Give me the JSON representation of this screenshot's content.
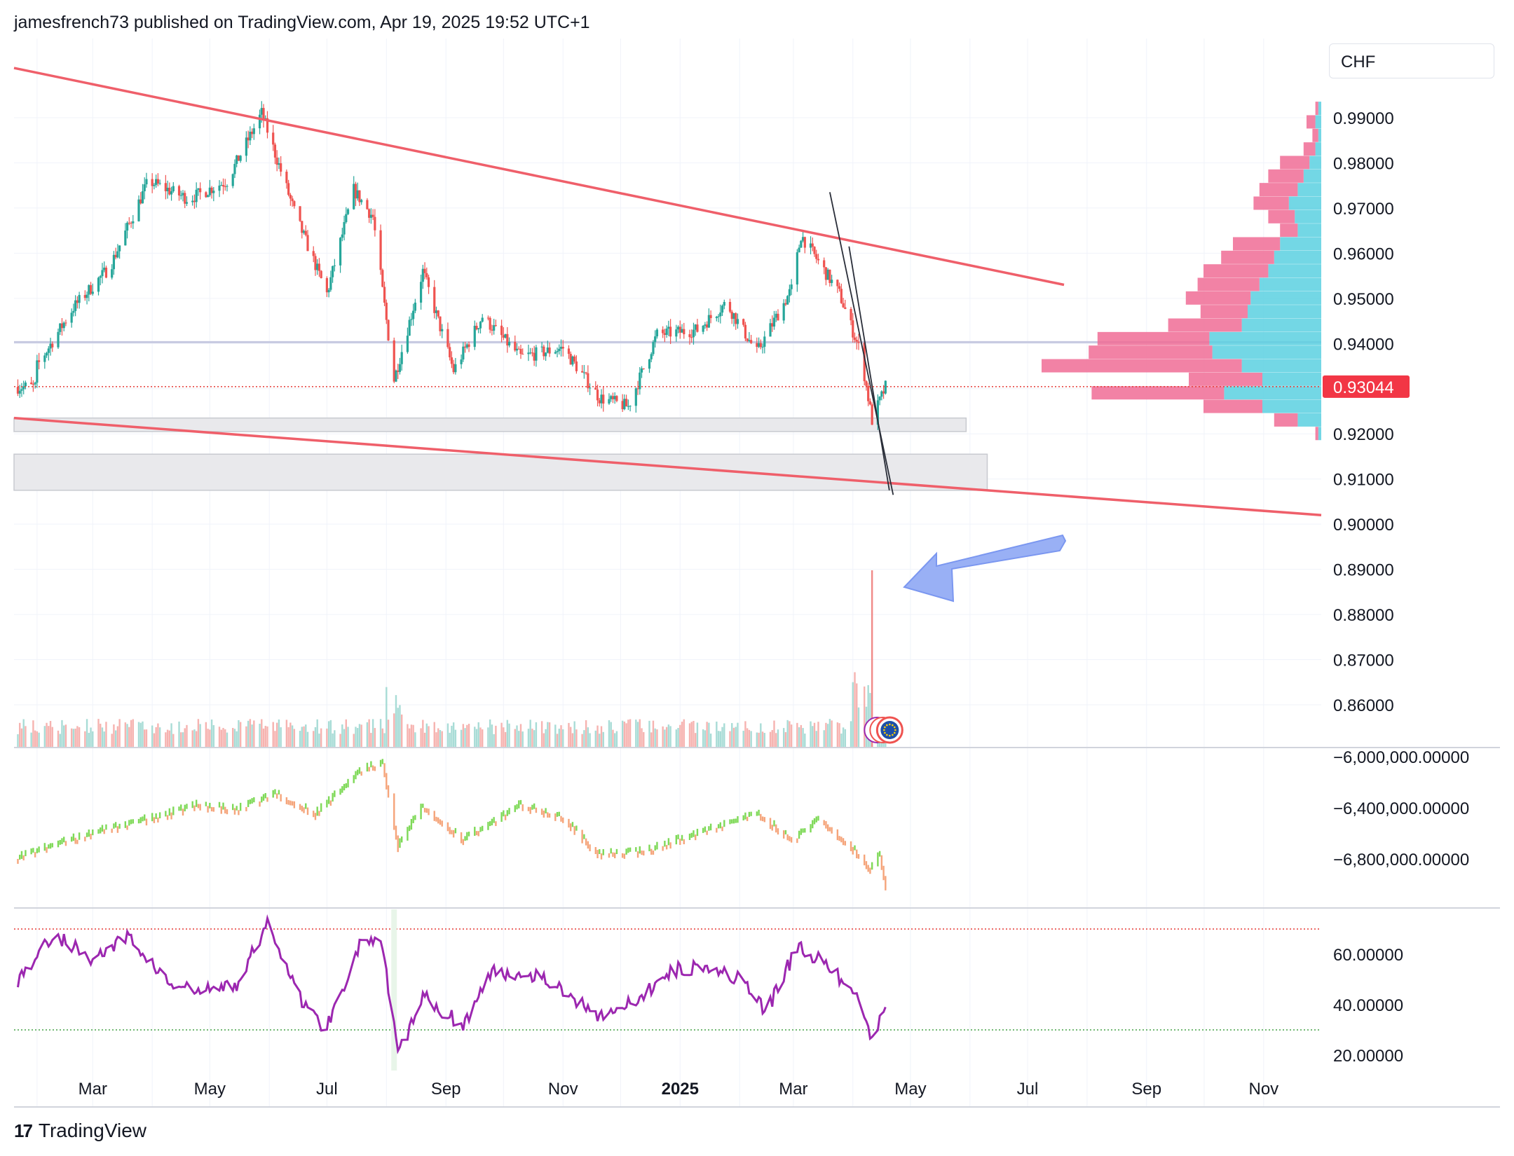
{
  "header": {
    "text": "jamesfrench73 published on TradingView.com, Apr 19, 2025 19:52 UTC+1"
  },
  "footer": {
    "brand": "TradingView",
    "mark": "17"
  },
  "currency": "CHF",
  "colors": {
    "up": "#26a69a",
    "down": "#ef5350",
    "trendline": "#ef5f6a",
    "support": "#d1d4dc",
    "arrow": "#8fa8f5",
    "rsi": "#9c27b0",
    "obv_up": "#7ed957",
    "obv_down": "#f5a47a",
    "vp_buy": "#5bd0e0",
    "vp_sell": "#f06c95"
  },
  "chart_data": [
    {
      "type": "candlestick",
      "pair_quote": "CHF",
      "ylim": [
        0.85,
        0.995
      ],
      "y_ticks": [
        "0.99000",
        "0.98000",
        "0.97000",
        "0.96000",
        "0.95000",
        "0.94000",
        "0.93000",
        "0.92000",
        "0.91000",
        "0.90000",
        "0.89000",
        "0.88000",
        "0.87000",
        "0.86000"
      ],
      "last_price_label": "0.93044",
      "x_ticks": [
        "Mar",
        "May",
        "Jul",
        "Sep",
        "Nov",
        "2025",
        "Mar",
        "May",
        "Jul",
        "Sep",
        "Nov"
      ],
      "price_path": [
        {
          "t": "2024-02-01",
          "v": 0.935
        },
        {
          "t": "2024-02-20",
          "v": 0.948
        },
        {
          "t": "2024-03-10",
          "v": 0.957
        },
        {
          "t": "2024-03-30",
          "v": 0.976
        },
        {
          "t": "2024-04-20",
          "v": 0.972
        },
        {
          "t": "2024-05-10",
          "v": 0.976
        },
        {
          "t": "2024-05-28",
          "v": 0.991
        },
        {
          "t": "2024-06-15",
          "v": 0.968
        },
        {
          "t": "2024-07-01",
          "v": 0.951
        },
        {
          "t": "2024-07-15",
          "v": 0.974
        },
        {
          "t": "2024-07-25",
          "v": 0.968
        },
        {
          "t": "2024-08-05",
          "v": 0.932
        },
        {
          "t": "2024-08-20",
          "v": 0.956
        },
        {
          "t": "2024-09-05",
          "v": 0.934
        },
        {
          "t": "2024-09-20",
          "v": 0.946
        },
        {
          "t": "2024-10-10",
          "v": 0.937
        },
        {
          "t": "2024-11-01",
          "v": 0.939
        },
        {
          "t": "2024-11-20",
          "v": 0.928
        },
        {
          "t": "2024-12-05",
          "v": 0.926
        },
        {
          "t": "2024-12-20",
          "v": 0.942
        },
        {
          "t": "2025-01-10",
          "v": 0.943
        },
        {
          "t": "2025-01-25",
          "v": 0.949
        },
        {
          "t": "2025-02-10",
          "v": 0.938
        },
        {
          "t": "2025-02-28",
          "v": 0.952
        },
        {
          "t": "2025-03-05",
          "v": 0.964
        },
        {
          "t": "2025-03-25",
          "v": 0.951
        },
        {
          "t": "2025-04-05",
          "v": 0.938
        },
        {
          "t": "2025-04-11",
          "v": 0.923
        },
        {
          "t": "2025-04-18",
          "v": 0.9304
        }
      ],
      "trendlines": [
        {
          "name": "upper",
          "from": {
            "t": "2024-01-20",
            "v": 1.001
          },
          "to": {
            "t": "2025-07-20",
            "v": 0.953
          }
        },
        {
          "name": "lower",
          "from": {
            "t": "2024-01-20",
            "v": 0.9235
          },
          "to": {
            "t": "2025-12-01",
            "v": 0.902
          }
        }
      ],
      "support_zones": [
        {
          "from": "2024-01-20",
          "to": "2025-05-30",
          "low": 0.9205,
          "high": 0.9235
        },
        {
          "from": "2024-01-20",
          "to": "2025-06-10",
          "low": 0.9075,
          "high": 0.9155
        }
      ],
      "horizontal_level": 0.9403,
      "volume_profile": [
        {
          "price": 0.992,
          "buy": 1,
          "sell": 1
        },
        {
          "price": 0.989,
          "buy": 2,
          "sell": 3
        },
        {
          "price": 0.986,
          "buy": 1,
          "sell": 2
        },
        {
          "price": 0.983,
          "buy": 2,
          "sell": 4
        },
        {
          "price": 0.98,
          "buy": 4,
          "sell": 10
        },
        {
          "price": 0.977,
          "buy": 6,
          "sell": 12
        },
        {
          "price": 0.974,
          "buy": 8,
          "sell": 13
        },
        {
          "price": 0.971,
          "buy": 11,
          "sell": 12
        },
        {
          "price": 0.968,
          "buy": 9,
          "sell": 9
        },
        {
          "price": 0.965,
          "buy": 8,
          "sell": 6
        },
        {
          "price": 0.962,
          "buy": 14,
          "sell": 16
        },
        {
          "price": 0.959,
          "buy": 16,
          "sell": 18
        },
        {
          "price": 0.956,
          "buy": 18,
          "sell": 22
        },
        {
          "price": 0.953,
          "buy": 21,
          "sell": 21
        },
        {
          "price": 0.95,
          "buy": 24,
          "sell": 22
        },
        {
          "price": 0.947,
          "buy": 25,
          "sell": 16
        },
        {
          "price": 0.944,
          "buy": 27,
          "sell": 25
        },
        {
          "price": 0.941,
          "buy": 38,
          "sell": 38
        },
        {
          "price": 0.938,
          "buy": 37,
          "sell": 42
        },
        {
          "price": 0.935,
          "buy": 27,
          "sell": 68
        },
        {
          "price": 0.932,
          "buy": 20,
          "sell": 25
        },
        {
          "price": 0.929,
          "buy": 33,
          "sell": 45
        },
        {
          "price": 0.926,
          "buy": 20,
          "sell": 20
        },
        {
          "price": 0.923,
          "buy": 8,
          "sell": 8
        },
        {
          "price": 0.92,
          "buy": 1,
          "sell": 1
        }
      ]
    },
    {
      "type": "bar",
      "name": "volume",
      "spike_date": "2025-04-11"
    },
    {
      "type": "line",
      "name": "obv",
      "y_ticks": [
        "−6,000,000.00000",
        "−6,400,000.00000",
        "−6,800,000.00000"
      ],
      "ylim": [
        -7050000,
        -5950000
      ],
      "points": [
        {
          "t": "2024-01-20",
          "v": -6800000
        },
        {
          "t": "2024-03-01",
          "v": -6600000
        },
        {
          "t": "2024-04-05",
          "v": -6470000
        },
        {
          "t": "2024-04-25",
          "v": -6380000
        },
        {
          "t": "2024-05-15",
          "v": -6420000
        },
        {
          "t": "2024-06-05",
          "v": -6290000
        },
        {
          "t": "2024-06-25",
          "v": -6450000
        },
        {
          "t": "2024-07-20",
          "v": -6100000
        },
        {
          "t": "2024-07-30",
          "v": -6050000
        },
        {
          "t": "2024-08-07",
          "v": -6700000
        },
        {
          "t": "2024-08-20",
          "v": -6390000
        },
        {
          "t": "2024-09-10",
          "v": -6650000
        },
        {
          "t": "2024-10-10",
          "v": -6380000
        },
        {
          "t": "2024-11-01",
          "v": -6480000
        },
        {
          "t": "2024-11-20",
          "v": -6770000
        },
        {
          "t": "2024-12-15",
          "v": -6740000
        },
        {
          "t": "2025-01-10",
          "v": -6600000
        },
        {
          "t": "2025-02-10",
          "v": -6450000
        },
        {
          "t": "2025-03-01",
          "v": -6650000
        },
        {
          "t": "2025-03-15",
          "v": -6490000
        },
        {
          "t": "2025-04-01",
          "v": -6720000
        },
        {
          "t": "2025-04-10",
          "v": -6870000
        },
        {
          "t": "2025-04-15",
          "v": -6760000
        },
        {
          "t": "2025-04-18",
          "v": -7010000
        }
      ]
    },
    {
      "type": "line",
      "name": "rsi",
      "y_ticks": [
        "60.00000",
        "40.00000",
        "20.00000"
      ],
      "ylim": [
        17,
        78
      ],
      "upper_band": 70,
      "lower_band": 30,
      "points": [
        {
          "t": "2024-01-20",
          "v": 48
        },
        {
          "t": "2024-02-10",
          "v": 68
        },
        {
          "t": "2024-03-01",
          "v": 58
        },
        {
          "t": "2024-03-20",
          "v": 67
        },
        {
          "t": "2024-04-10",
          "v": 48
        },
        {
          "t": "2024-04-25",
          "v": 45
        },
        {
          "t": "2024-05-15",
          "v": 48
        },
        {
          "t": "2024-06-01",
          "v": 73
        },
        {
          "t": "2024-06-15",
          "v": 45
        },
        {
          "t": "2024-06-30",
          "v": 30
        },
        {
          "t": "2024-07-20",
          "v": 67
        },
        {
          "t": "2024-07-30",
          "v": 62
        },
        {
          "t": "2024-08-07",
          "v": 20
        },
        {
          "t": "2024-08-20",
          "v": 43
        },
        {
          "t": "2024-09-10",
          "v": 32
        },
        {
          "t": "2024-09-25",
          "v": 53
        },
        {
          "t": "2024-10-20",
          "v": 52
        },
        {
          "t": "2024-11-01",
          "v": 45
        },
        {
          "t": "2024-11-20",
          "v": 36
        },
        {
          "t": "2024-12-10",
          "v": 41
        },
        {
          "t": "2024-12-25",
          "v": 53
        },
        {
          "t": "2025-01-15",
          "v": 56
        },
        {
          "t": "2025-02-01",
          "v": 50
        },
        {
          "t": "2025-02-15",
          "v": 37
        },
        {
          "t": "2025-03-03",
          "v": 63
        },
        {
          "t": "2025-03-20",
          "v": 55
        },
        {
          "t": "2025-04-05",
          "v": 40
        },
        {
          "t": "2025-04-10",
          "v": 27
        },
        {
          "t": "2025-04-18",
          "v": 38
        }
      ]
    }
  ]
}
